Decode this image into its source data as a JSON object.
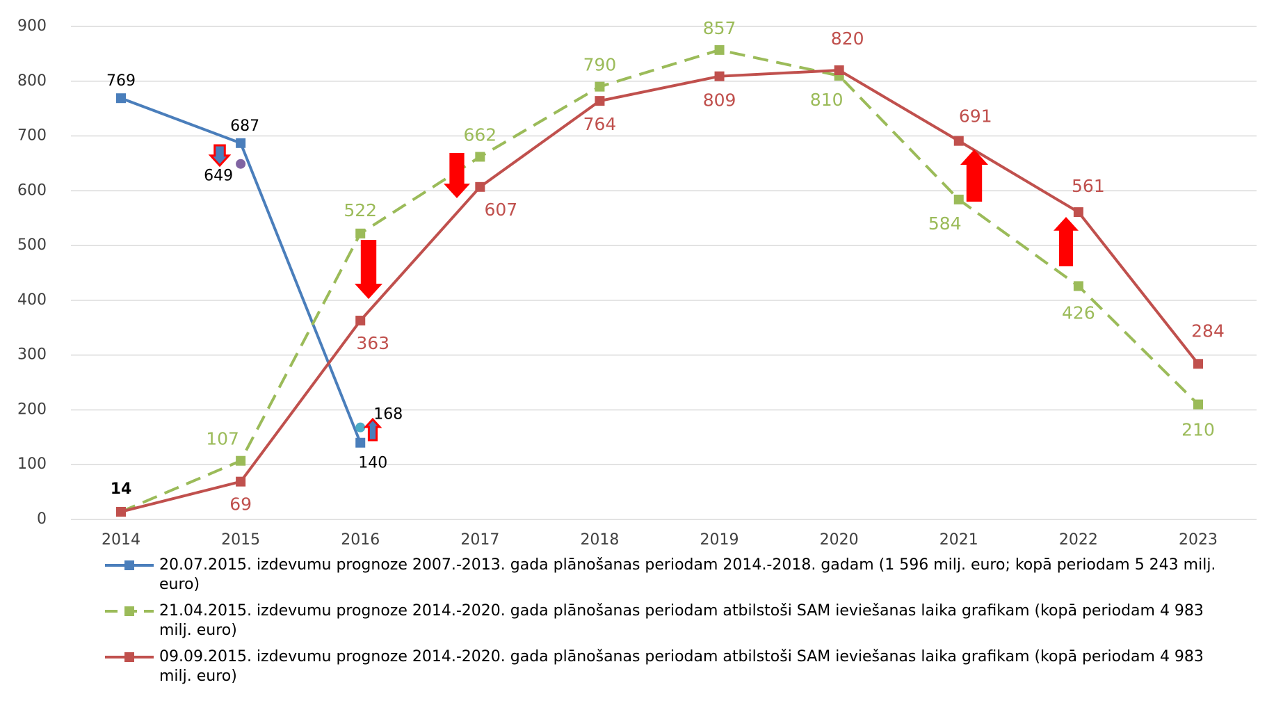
{
  "chart_data": {
    "type": "line",
    "categories": [
      "2014",
      "2015",
      "2016",
      "2017",
      "2018",
      "2019",
      "2020",
      "2021",
      "2022",
      "2023"
    ],
    "series": [
      {
        "name": "20.07.2015. izdevumu prognoze 2007.-2013. gada plānošanas periodam 2014.-2018. gadam (1 596 milj. euro; kopā periodam 5 243 milj. euro)",
        "color": "#4a7ebb",
        "dashed": false,
        "values": [
          769,
          687,
          140,
          null,
          null,
          null,
          null,
          null,
          null,
          null
        ]
      },
      {
        "name": "21.04.2015. izdevumu prognoze 2014.-2020. gada plānošanas periodam atbilstoši SAM ieviešanas laika grafikam (kopā periodam 4 983 milj. euro)",
        "color": "#9bbb59",
        "dashed": true,
        "values": [
          14,
          107,
          522,
          662,
          790,
          857,
          810,
          584,
          426,
          210
        ]
      },
      {
        "name": "09.09.2015. izdevumu prognoze 2014.-2020. gada plānošanas periodam atbilstoši SAM ieviešanas laika grafikam  (kopā periodam 4 983 milj. euro)",
        "color": "#c0504d",
        "dashed": false,
        "values": [
          14,
          69,
          363,
          607,
          764,
          809,
          820,
          691,
          561,
          284
        ]
      }
    ],
    "points": [
      {
        "category": "2015",
        "value": 649,
        "color": "#8064a2"
      },
      {
        "category": "2016",
        "value": 168,
        "color": "#4bacc6"
      }
    ],
    "ylim": [
      0,
      900
    ],
    "yticks": [
      0,
      100,
      200,
      300,
      400,
      500,
      600,
      700,
      800,
      900
    ],
    "grid": true
  }
}
